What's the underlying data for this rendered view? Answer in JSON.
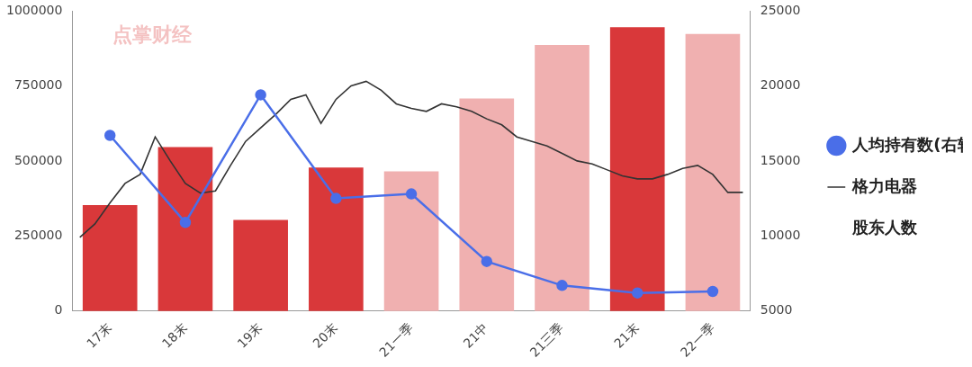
{
  "chart_data": {
    "type": "bar",
    "annotations": [
      "点掌财经"
    ],
    "categories": [
      null,
      null,
      "17末",
      null,
      null,
      null,
      null,
      "18末",
      null,
      null,
      null,
      null,
      "19末",
      null,
      null,
      null,
      null,
      "20末",
      null,
      null,
      null,
      null,
      "21一季",
      null,
      null,
      null,
      null,
      "21中",
      null,
      null,
      null,
      null,
      "21三季",
      null,
      null,
      null,
      null,
      "21末",
      null,
      null,
      null,
      null,
      "22一季",
      null,
      null
    ],
    "ylim": [
      0,
      1000000
    ],
    "yticks": [
      0,
      250000,
      500000,
      750000,
      1000000
    ],
    "y2lim": [
      5000,
      25000
    ],
    "y2ticks": [
      5000,
      10000,
      15000,
      20000,
      25000
    ],
    "grid": false,
    "legend": "right",
    "series": [
      {
        "name": "股东人数",
        "type": "bar",
        "colors": [
          null,
          null,
          "#d9383a",
          null,
          null,
          null,
          null,
          "#d9383a",
          null,
          null,
          null,
          null,
          "#d9383a",
          null,
          null,
          null,
          null,
          "#d9383a",
          null,
          null,
          null,
          null,
          "#f0b0b0",
          null,
          null,
          null,
          null,
          "#f0b0b0",
          null,
          null,
          null,
          null,
          "#f0b0b0",
          null,
          null,
          null,
          null,
          "#d9383a",
          null,
          null,
          null,
          null,
          "#f0b0b0",
          null,
          null
        ],
        "values": [
          null,
          null,
          352000,
          null,
          null,
          null,
          null,
          545000,
          null,
          null,
          null,
          null,
          302000,
          null,
          null,
          null,
          null,
          477000,
          null,
          null,
          null,
          null,
          464000,
          null,
          null,
          null,
          null,
          707000,
          null,
          null,
          null,
          null,
          885000,
          null,
          null,
          null,
          null,
          944000,
          null,
          null,
          null,
          null,
          922000,
          null,
          null
        ]
      },
      {
        "name": "人均持有数(右轴)",
        "type": "line",
        "axis": "y2",
        "color": "#4a6ee8",
        "marker": "circle",
        "line_style": "solid",
        "values": [
          null,
          null,
          16700,
          null,
          null,
          null,
          null,
          10900,
          null,
          null,
          null,
          null,
          19400,
          null,
          null,
          null,
          null,
          12500,
          null,
          null,
          null,
          null,
          12800,
          null,
          null,
          null,
          null,
          8300,
          null,
          null,
          null,
          null,
          6700,
          null,
          null,
          null,
          null,
          6200,
          null,
          null,
          null,
          null,
          6300,
          null,
          null
        ]
      },
      {
        "name": "格力电器",
        "type": "line",
        "axis": "y2",
        "color": "#333333",
        "marker": "none",
        "line_style": "solid",
        "values": [
          9900,
          10800,
          12200,
          13500,
          14100,
          16600,
          15000,
          13500,
          12850,
          13000,
          14700,
          16300,
          17200,
          18100,
          19100,
          19400,
          17500,
          19100,
          20000,
          20300,
          19700,
          18800,
          18500,
          18300,
          18800,
          18600,
          18300,
          17800,
          17400,
          16600,
          16300,
          16000,
          15500,
          15000,
          14800,
          14400,
          14000,
          13800,
          13800,
          14100,
          14500,
          14700,
          14100,
          12900,
          12900
        ]
      }
    ]
  }
}
